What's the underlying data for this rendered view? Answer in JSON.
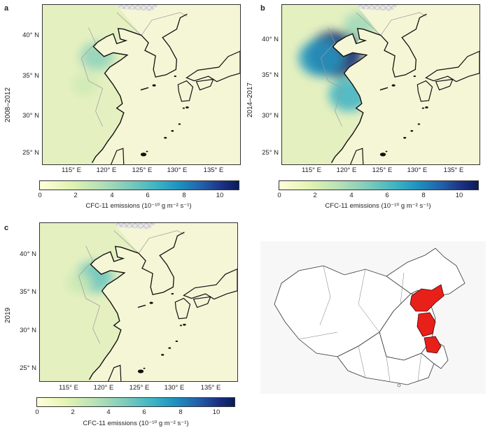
{
  "chart_data": [
    {
      "type": "heatmap",
      "panel": "a",
      "period_label": "2008–2012",
      "yticks": [
        "40° N",
        "35° N",
        "30° N",
        "25° N"
      ],
      "xticks": [
        "115° E",
        "120° E",
        "125° E",
        "130° E",
        "135° E"
      ],
      "colorbar": {
        "ticks": [
          "0",
          "2",
          "4",
          "6",
          "8",
          "10"
        ],
        "range": [
          0,
          11
        ],
        "title": "CFC-11 emissions (10⁻¹⁰ g m⁻² s⁻¹)"
      },
      "hotspots": [
        {
          "lon": 118.2,
          "lat": 37.2,
          "value": 4.5
        },
        {
          "lon": 116.5,
          "lat": 33.5,
          "value": 2.5
        }
      ]
    },
    {
      "type": "heatmap",
      "panel": "b",
      "period_label": "2014–2017",
      "yticks": [
        "40° N",
        "35° N",
        "30° N",
        "25° N"
      ],
      "xticks": [
        "115° E",
        "120° E",
        "125° E",
        "130° E",
        "135° E"
      ],
      "colorbar": {
        "ticks": [
          "0",
          "2",
          "4",
          "6",
          "8",
          "10"
        ],
        "range": [
          0,
          11
        ],
        "title": "CFC-11 emissions (10⁻¹⁰ g m⁻² s⁻¹)"
      },
      "hotspots": [
        {
          "lon": 118.0,
          "lat": 37.5,
          "value": 10.5
        },
        {
          "lon": 116.0,
          "lat": 37.0,
          "value": 7.5
        },
        {
          "lon": 120.0,
          "lat": 32.2,
          "value": 6.5
        },
        {
          "lon": 121.5,
          "lat": 41.3,
          "value": 4.0
        }
      ]
    },
    {
      "type": "heatmap",
      "panel": "c",
      "period_label": "2019",
      "yticks": [
        "40° N",
        "35° N",
        "30° N",
        "25° N"
      ],
      "xticks": [
        "115° E",
        "120° E",
        "125° E",
        "130° E",
        "135° E"
      ],
      "colorbar": {
        "ticks": [
          "0",
          "2",
          "4",
          "6",
          "8",
          "10"
        ],
        "range": [
          0,
          11
        ],
        "title": "CFC-11 emissions (10⁻¹⁰ g m⁻² s⁻¹)"
      },
      "hotspots": [
        {
          "lon": 118.2,
          "lat": 36.8,
          "value": 5.5
        },
        {
          "lon": 116.0,
          "lat": 36.0,
          "value": 2.5
        }
      ]
    }
  ],
  "inset_map": {
    "highlighted_color": "#e8201a"
  }
}
